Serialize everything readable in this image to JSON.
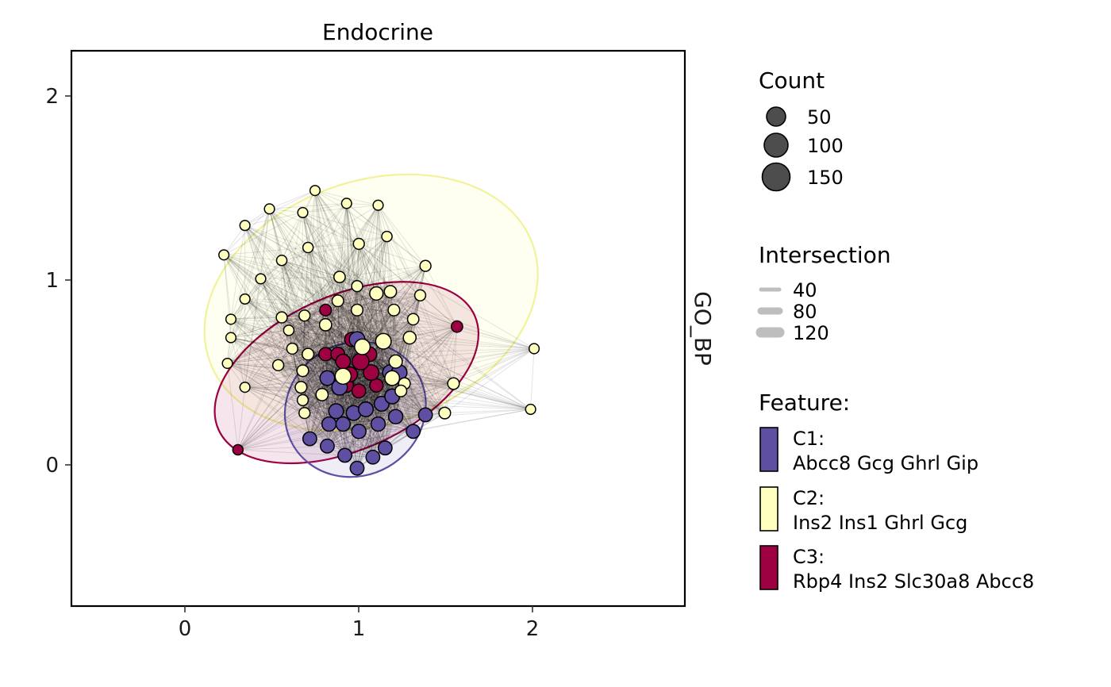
{
  "chart_data": {
    "type": "scatter",
    "title": "Endocrine",
    "strip_label": "GO_BP",
    "xlim": [
      -0.65,
      2.85
    ],
    "ylim": [
      -0.77,
      2.25
    ],
    "x_ticks": [
      "0",
      "1",
      "2"
    ],
    "y_ticks": [
      "0",
      "1",
      "2"
    ],
    "grid": false,
    "legend_placement": "right",
    "colors": {
      "C1": "#5E4FA2",
      "C2": "#FFFFBF",
      "C3": "#9E0142",
      "edge": "#000000",
      "ink": "#4D4D4D"
    },
    "ellipses": [
      {
        "cluster": "C2",
        "cx": 1.06,
        "cy": 0.88,
        "rx": 0.98,
        "ry": 0.66,
        "angle": -20
      },
      {
        "cluster": "C3",
        "cx": 0.92,
        "cy": 0.5,
        "rx": 0.8,
        "ry": 0.42,
        "angle": -24
      },
      {
        "cluster": "C1",
        "cx": 0.97,
        "cy": 0.3,
        "rx": 0.41,
        "ry": 0.36,
        "angle": -30
      }
    ],
    "series": [
      {
        "name": "C1",
        "points": [
          {
            "x": 0.71,
            "y": 0.14,
            "count": 60
          },
          {
            "x": 0.81,
            "y": 0.1,
            "count": 60
          },
          {
            "x": 0.91,
            "y": 0.05,
            "count": 60
          },
          {
            "x": 0.98,
            "y": -0.02,
            "count": 60
          },
          {
            "x": 1.07,
            "y": 0.04,
            "count": 60
          },
          {
            "x": 1.14,
            "y": 0.09,
            "count": 60
          },
          {
            "x": 0.82,
            "y": 0.22,
            "count": 65
          },
          {
            "x": 0.9,
            "y": 0.22,
            "count": 65
          },
          {
            "x": 0.99,
            "y": 0.18,
            "count": 65
          },
          {
            "x": 1.1,
            "y": 0.22,
            "count": 65
          },
          {
            "x": 1.2,
            "y": 0.26,
            "count": 65
          },
          {
            "x": 1.3,
            "y": 0.18,
            "count": 60
          },
          {
            "x": 1.37,
            "y": 0.27,
            "count": 60
          },
          {
            "x": 0.86,
            "y": 0.29,
            "count": 70
          },
          {
            "x": 0.96,
            "y": 0.28,
            "count": 70
          },
          {
            "x": 1.03,
            "y": 0.3,
            "count": 70
          },
          {
            "x": 1.12,
            "y": 0.33,
            "count": 70
          },
          {
            "x": 1.18,
            "y": 0.37,
            "count": 70
          },
          {
            "x": 0.81,
            "y": 0.47,
            "count": 70
          },
          {
            "x": 0.88,
            "y": 0.42,
            "count": 80
          },
          {
            "x": 1.17,
            "y": 0.5,
            "count": 80
          },
          {
            "x": 1.22,
            "y": 0.5,
            "count": 80
          },
          {
            "x": 0.98,
            "y": 0.68,
            "count": 80
          }
        ]
      },
      {
        "name": "C2",
        "points": [
          {
            "x": 0.74,
            "y": 1.49,
            "count": 28
          },
          {
            "x": 0.92,
            "y": 1.42,
            "count": 28
          },
          {
            "x": 1.1,
            "y": 1.41,
            "count": 28
          },
          {
            "x": 0.48,
            "y": 1.39,
            "count": 28
          },
          {
            "x": 0.67,
            "y": 1.37,
            "count": 28
          },
          {
            "x": 0.34,
            "y": 1.3,
            "count": 28
          },
          {
            "x": 1.15,
            "y": 1.24,
            "count": 30
          },
          {
            "x": 0.99,
            "y": 1.2,
            "count": 35
          },
          {
            "x": 0.7,
            "y": 1.18,
            "count": 30
          },
          {
            "x": 0.22,
            "y": 1.14,
            "count": 28
          },
          {
            "x": 0.55,
            "y": 1.11,
            "count": 30
          },
          {
            "x": 1.37,
            "y": 1.08,
            "count": 35
          },
          {
            "x": 0.88,
            "y": 1.02,
            "count": 38
          },
          {
            "x": 0.43,
            "y": 1.01,
            "count": 28
          },
          {
            "x": 0.98,
            "y": 0.97,
            "count": 35
          },
          {
            "x": 1.17,
            "y": 0.94,
            "count": 45
          },
          {
            "x": 1.09,
            "y": 0.93,
            "count": 55
          },
          {
            "x": 1.34,
            "y": 0.92,
            "count": 35
          },
          {
            "x": 0.34,
            "y": 0.9,
            "count": 28
          },
          {
            "x": 0.87,
            "y": 0.89,
            "count": 40
          },
          {
            "x": 1.19,
            "y": 0.84,
            "count": 40
          },
          {
            "x": 0.98,
            "y": 0.84,
            "count": 40
          },
          {
            "x": 0.68,
            "y": 0.81,
            "count": 35
          },
          {
            "x": 0.26,
            "y": 0.79,
            "count": 28
          },
          {
            "x": 0.55,
            "y": 0.8,
            "count": 35
          },
          {
            "x": 1.3,
            "y": 0.79,
            "count": 38
          },
          {
            "x": 0.8,
            "y": 0.76,
            "count": 45
          },
          {
            "x": 0.59,
            "y": 0.73,
            "count": 30
          },
          {
            "x": 0.26,
            "y": 0.69,
            "count": 28
          },
          {
            "x": 1.28,
            "y": 0.69,
            "count": 50
          },
          {
            "x": 1.13,
            "y": 0.67,
            "count": 80
          },
          {
            "x": 1.01,
            "y": 0.64,
            "count": 80
          },
          {
            "x": 0.61,
            "y": 0.63,
            "count": 35
          },
          {
            "x": 0.7,
            "y": 0.6,
            "count": 40
          },
          {
            "x": 1.99,
            "y": 0.63,
            "count": 28
          },
          {
            "x": 1.2,
            "y": 0.56,
            "count": 55
          },
          {
            "x": 0.24,
            "y": 0.55,
            "count": 28
          },
          {
            "x": 0.53,
            "y": 0.54,
            "count": 35
          },
          {
            "x": 0.67,
            "y": 0.51,
            "count": 40
          },
          {
            "x": 0.9,
            "y": 0.48,
            "count": 85
          },
          {
            "x": 1.18,
            "y": 0.47,
            "count": 70
          },
          {
            "x": 1.25,
            "y": 0.44,
            "count": 40
          },
          {
            "x": 1.53,
            "y": 0.44,
            "count": 40
          },
          {
            "x": 0.34,
            "y": 0.42,
            "count": 28
          },
          {
            "x": 0.66,
            "y": 0.42,
            "count": 40
          },
          {
            "x": 1.23,
            "y": 0.4,
            "count": 40
          },
          {
            "x": 0.78,
            "y": 0.38,
            "count": 45
          },
          {
            "x": 0.67,
            "y": 0.35,
            "count": 35
          },
          {
            "x": 1.97,
            "y": 0.3,
            "count": 28
          },
          {
            "x": 1.48,
            "y": 0.28,
            "count": 40
          },
          {
            "x": 0.68,
            "y": 0.28,
            "count": 35
          }
        ]
      },
      {
        "name": "C3",
        "points": [
          {
            "x": 0.3,
            "y": 0.08,
            "count": 30
          },
          {
            "x": 1.55,
            "y": 0.75,
            "count": 38
          },
          {
            "x": 0.8,
            "y": 0.84,
            "count": 40
          },
          {
            "x": 0.8,
            "y": 0.6,
            "count": 55
          },
          {
            "x": 0.87,
            "y": 0.6,
            "count": 60
          },
          {
            "x": 0.95,
            "y": 0.68,
            "count": 65
          },
          {
            "x": 1.05,
            "y": 0.6,
            "count": 70
          },
          {
            "x": 0.9,
            "y": 0.56,
            "count": 70
          },
          {
            "x": 1.0,
            "y": 0.56,
            "count": 95
          },
          {
            "x": 1.06,
            "y": 0.5,
            "count": 80
          },
          {
            "x": 0.94,
            "y": 0.49,
            "count": 70
          },
          {
            "x": 0.92,
            "y": 0.43,
            "count": 60
          },
          {
            "x": 0.99,
            "y": 0.4,
            "count": 60
          },
          {
            "x": 1.09,
            "y": 0.43,
            "count": 55
          }
        ]
      }
    ]
  },
  "legend": {
    "count": {
      "title": "Count",
      "items": [
        {
          "label": "50",
          "count": 50
        },
        {
          "label": "100",
          "count": 100
        },
        {
          "label": "150",
          "count": 150
        }
      ]
    },
    "intersection": {
      "title": "Intersection",
      "items": [
        {
          "label": "40",
          "value": 40
        },
        {
          "label": "80",
          "value": 80
        },
        {
          "label": "120",
          "value": 120
        }
      ]
    },
    "feature": {
      "title": "Feature:",
      "items": [
        {
          "key": "C1",
          "line1": "C1:",
          "line2": "Abcc8 Gcg Ghrl Gip"
        },
        {
          "key": "C2",
          "line1": "C2:",
          "line2": "Ins2 Ins1 Ghrl Gcg"
        },
        {
          "key": "C3",
          "line1": "C3:",
          "line2": "Rbp4 Ins2 Slc30a8 Abcc8"
        }
      ]
    }
  }
}
